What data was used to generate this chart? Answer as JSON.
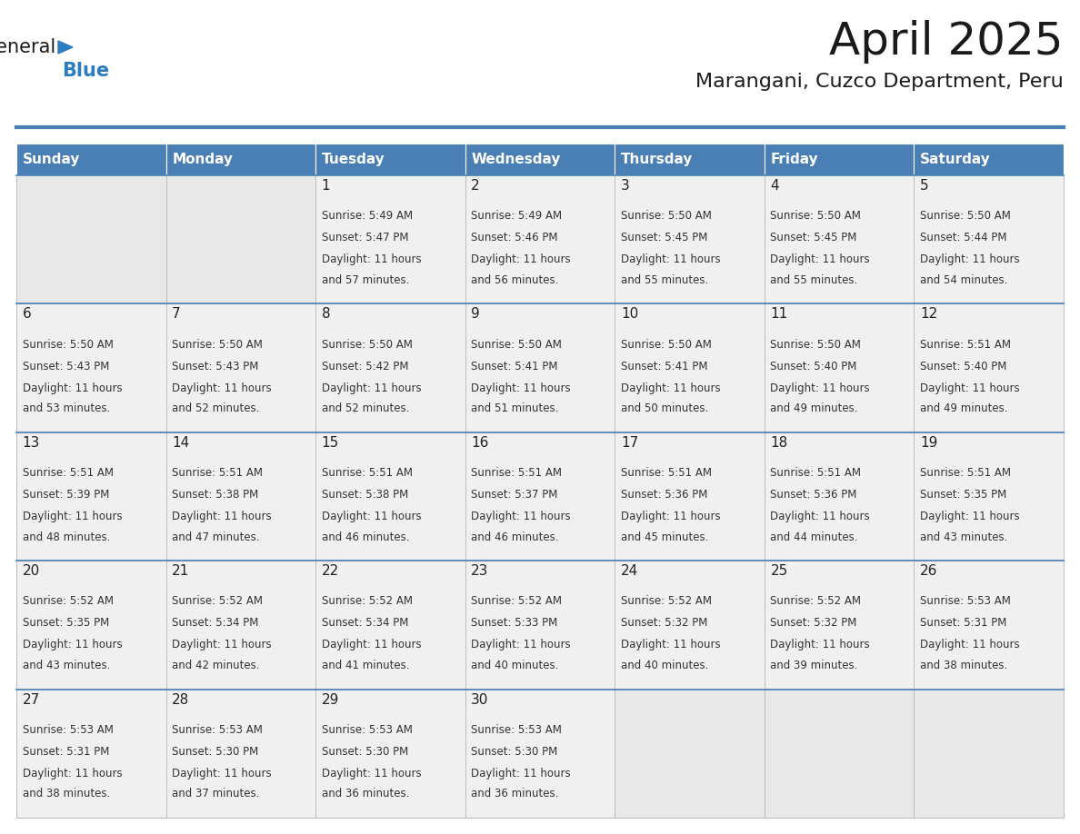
{
  "title": "April 2025",
  "subtitle": "Marangani, Cuzco Department, Peru",
  "header_color": "#4a7fb5",
  "header_text_color": "#ffffff",
  "cell_bg_color": "#f0f0f0",
  "cell_empty_bg_color": "#e8e8e8",
  "border_color": "#4a7fb5",
  "grid_color": "#bbbbbb",
  "text_color": "#333333",
  "days_of_week": [
    "Sunday",
    "Monday",
    "Tuesday",
    "Wednesday",
    "Thursday",
    "Friday",
    "Saturday"
  ],
  "weeks": [
    [
      {
        "day": "",
        "sunrise": "",
        "sunset": "",
        "daylight": ""
      },
      {
        "day": "",
        "sunrise": "",
        "sunset": "",
        "daylight": ""
      },
      {
        "day": "1",
        "sunrise": "Sunrise: 5:49 AM",
        "sunset": "Sunset: 5:47 PM",
        "daylight": "Daylight: 11 hours\nand 57 minutes."
      },
      {
        "day": "2",
        "sunrise": "Sunrise: 5:49 AM",
        "sunset": "Sunset: 5:46 PM",
        "daylight": "Daylight: 11 hours\nand 56 minutes."
      },
      {
        "day": "3",
        "sunrise": "Sunrise: 5:50 AM",
        "sunset": "Sunset: 5:45 PM",
        "daylight": "Daylight: 11 hours\nand 55 minutes."
      },
      {
        "day": "4",
        "sunrise": "Sunrise: 5:50 AM",
        "sunset": "Sunset: 5:45 PM",
        "daylight": "Daylight: 11 hours\nand 55 minutes."
      },
      {
        "day": "5",
        "sunrise": "Sunrise: 5:50 AM",
        "sunset": "Sunset: 5:44 PM",
        "daylight": "Daylight: 11 hours\nand 54 minutes."
      }
    ],
    [
      {
        "day": "6",
        "sunrise": "Sunrise: 5:50 AM",
        "sunset": "Sunset: 5:43 PM",
        "daylight": "Daylight: 11 hours\nand 53 minutes."
      },
      {
        "day": "7",
        "sunrise": "Sunrise: 5:50 AM",
        "sunset": "Sunset: 5:43 PM",
        "daylight": "Daylight: 11 hours\nand 52 minutes."
      },
      {
        "day": "8",
        "sunrise": "Sunrise: 5:50 AM",
        "sunset": "Sunset: 5:42 PM",
        "daylight": "Daylight: 11 hours\nand 52 minutes."
      },
      {
        "day": "9",
        "sunrise": "Sunrise: 5:50 AM",
        "sunset": "Sunset: 5:41 PM",
        "daylight": "Daylight: 11 hours\nand 51 minutes."
      },
      {
        "day": "10",
        "sunrise": "Sunrise: 5:50 AM",
        "sunset": "Sunset: 5:41 PM",
        "daylight": "Daylight: 11 hours\nand 50 minutes."
      },
      {
        "day": "11",
        "sunrise": "Sunrise: 5:50 AM",
        "sunset": "Sunset: 5:40 PM",
        "daylight": "Daylight: 11 hours\nand 49 minutes."
      },
      {
        "day": "12",
        "sunrise": "Sunrise: 5:51 AM",
        "sunset": "Sunset: 5:40 PM",
        "daylight": "Daylight: 11 hours\nand 49 minutes."
      }
    ],
    [
      {
        "day": "13",
        "sunrise": "Sunrise: 5:51 AM",
        "sunset": "Sunset: 5:39 PM",
        "daylight": "Daylight: 11 hours\nand 48 minutes."
      },
      {
        "day": "14",
        "sunrise": "Sunrise: 5:51 AM",
        "sunset": "Sunset: 5:38 PM",
        "daylight": "Daylight: 11 hours\nand 47 minutes."
      },
      {
        "day": "15",
        "sunrise": "Sunrise: 5:51 AM",
        "sunset": "Sunset: 5:38 PM",
        "daylight": "Daylight: 11 hours\nand 46 minutes."
      },
      {
        "day": "16",
        "sunrise": "Sunrise: 5:51 AM",
        "sunset": "Sunset: 5:37 PM",
        "daylight": "Daylight: 11 hours\nand 46 minutes."
      },
      {
        "day": "17",
        "sunrise": "Sunrise: 5:51 AM",
        "sunset": "Sunset: 5:36 PM",
        "daylight": "Daylight: 11 hours\nand 45 minutes."
      },
      {
        "day": "18",
        "sunrise": "Sunrise: 5:51 AM",
        "sunset": "Sunset: 5:36 PM",
        "daylight": "Daylight: 11 hours\nand 44 minutes."
      },
      {
        "day": "19",
        "sunrise": "Sunrise: 5:51 AM",
        "sunset": "Sunset: 5:35 PM",
        "daylight": "Daylight: 11 hours\nand 43 minutes."
      }
    ],
    [
      {
        "day": "20",
        "sunrise": "Sunrise: 5:52 AM",
        "sunset": "Sunset: 5:35 PM",
        "daylight": "Daylight: 11 hours\nand 43 minutes."
      },
      {
        "day": "21",
        "sunrise": "Sunrise: 5:52 AM",
        "sunset": "Sunset: 5:34 PM",
        "daylight": "Daylight: 11 hours\nand 42 minutes."
      },
      {
        "day": "22",
        "sunrise": "Sunrise: 5:52 AM",
        "sunset": "Sunset: 5:34 PM",
        "daylight": "Daylight: 11 hours\nand 41 minutes."
      },
      {
        "day": "23",
        "sunrise": "Sunrise: 5:52 AM",
        "sunset": "Sunset: 5:33 PM",
        "daylight": "Daylight: 11 hours\nand 40 minutes."
      },
      {
        "day": "24",
        "sunrise": "Sunrise: 5:52 AM",
        "sunset": "Sunset: 5:32 PM",
        "daylight": "Daylight: 11 hours\nand 40 minutes."
      },
      {
        "day": "25",
        "sunrise": "Sunrise: 5:52 AM",
        "sunset": "Sunset: 5:32 PM",
        "daylight": "Daylight: 11 hours\nand 39 minutes."
      },
      {
        "day": "26",
        "sunrise": "Sunrise: 5:53 AM",
        "sunset": "Sunset: 5:31 PM",
        "daylight": "Daylight: 11 hours\nand 38 minutes."
      }
    ],
    [
      {
        "day": "27",
        "sunrise": "Sunrise: 5:53 AM",
        "sunset": "Sunset: 5:31 PM",
        "daylight": "Daylight: 11 hours\nand 38 minutes."
      },
      {
        "day": "28",
        "sunrise": "Sunrise: 5:53 AM",
        "sunset": "Sunset: 5:30 PM",
        "daylight": "Daylight: 11 hours\nand 37 minutes."
      },
      {
        "day": "29",
        "sunrise": "Sunrise: 5:53 AM",
        "sunset": "Sunset: 5:30 PM",
        "daylight": "Daylight: 11 hours\nand 36 minutes."
      },
      {
        "day": "30",
        "sunrise": "Sunrise: 5:53 AM",
        "sunset": "Sunset: 5:30 PM",
        "daylight": "Daylight: 11 hours\nand 36 minutes."
      },
      {
        "day": "",
        "sunrise": "",
        "sunset": "",
        "daylight": ""
      },
      {
        "day": "",
        "sunrise": "",
        "sunset": "",
        "daylight": ""
      },
      {
        "day": "",
        "sunrise": "",
        "sunset": "",
        "daylight": ""
      }
    ]
  ],
  "logo_general_color": "#1a1a1a",
  "logo_blue_color": "#2a7dc0",
  "logo_triangle_color": "#2a7dc0",
  "title_fontsize": 36,
  "subtitle_fontsize": 16,
  "day_header_fontsize": 11,
  "day_num_fontsize": 11,
  "cell_text_fontsize": 8.5
}
